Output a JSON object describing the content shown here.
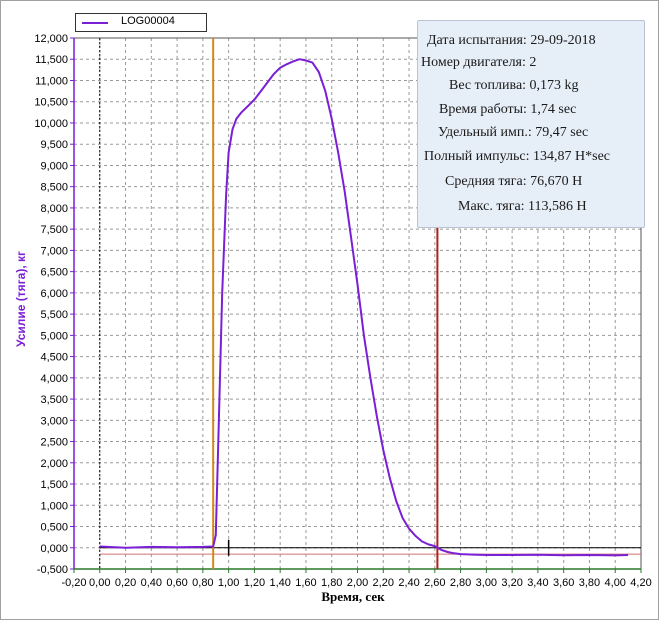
{
  "legend": {
    "series_name": "LOG00004",
    "line_color": "#7a1fd6"
  },
  "info_panel": {
    "rows": [
      "Дата испытания: 29-09-2018",
      "Номер двигателя: 2",
      "Вес топлива: 0,173 kg",
      "Время работы: 1,74 sec",
      "Удельный имп.: 79,47 sec",
      "Полный импульс: 134,87 Н*sec",
      "Средняя тяга: 76,670 Н",
      "Макс. тяга: 113,586 Н"
    ]
  },
  "chart_data": {
    "type": "line",
    "ylabel": "Усилие (тяга), кг",
    "xlabel": "Время, сек",
    "xlim": [
      -0.2,
      4.2
    ],
    "ylim": [
      -500,
      12000
    ],
    "grid": true,
    "legend_position": "top-left",
    "x_ticks": [
      "-0,20",
      "0,00",
      "0,20",
      "0,40",
      "0,60",
      "0,80",
      "1,00",
      "1,20",
      "1,40",
      "1,60",
      "1,80",
      "2,00",
      "2,20",
      "2,40",
      "2,60",
      "2,80",
      "3,00",
      "3,20",
      "3,40",
      "3,60",
      "3,80",
      "4,00",
      "4,20"
    ],
    "y_ticks": [
      "-0,500",
      "0,000",
      "0,500",
      "1,000",
      "1,500",
      "2,000",
      "2,500",
      "3,000",
      "3,500",
      "4,000",
      "4,500",
      "5,000",
      "5,500",
      "6,000",
      "6,500",
      "7,000",
      "7,500",
      "8,000",
      "8,500",
      "9,000",
      "9,500",
      "10,000",
      "10,500",
      "11,000",
      "11,500",
      "12,000"
    ],
    "markers": [
      {
        "name": "start-marker",
        "x": 0.88,
        "color": "#d08a1a"
      },
      {
        "name": "end-marker",
        "x": 2.62,
        "color": "#b02020"
      },
      {
        "name": "zero-reference",
        "x": 0.0,
        "color": "#000000"
      }
    ],
    "baseline_y": -150,
    "series": [
      {
        "name": "LOG00004",
        "color": "#7a1fd6",
        "x": [
          0.0,
          0.2,
          0.4,
          0.6,
          0.8,
          0.88,
          0.9,
          0.92,
          0.95,
          0.98,
          1.0,
          1.03,
          1.06,
          1.1,
          1.15,
          1.2,
          1.25,
          1.3,
          1.35,
          1.4,
          1.45,
          1.5,
          1.55,
          1.6,
          1.65,
          1.7,
          1.75,
          1.8,
          1.85,
          1.9,
          1.95,
          2.0,
          2.05,
          2.1,
          2.15,
          2.2,
          2.25,
          2.3,
          2.35,
          2.4,
          2.45,
          2.5,
          2.55,
          2.6,
          2.65,
          2.7,
          2.75,
          2.8,
          2.9,
          3.0,
          3.2,
          3.4,
          3.6,
          3.8,
          4.0,
          4.1
        ],
        "y": [
          30,
          0,
          20,
          10,
          20,
          30,
          300,
          2500,
          6000,
          8300,
          9300,
          9850,
          10100,
          10250,
          10400,
          10550,
          10750,
          10950,
          11150,
          11300,
          11380,
          11450,
          11500,
          11470,
          11420,
          11200,
          10750,
          10100,
          9300,
          8400,
          7300,
          6200,
          5000,
          4000,
          3100,
          2300,
          1650,
          1100,
          700,
          450,
          280,
          150,
          80,
          40,
          -50,
          -100,
          -130,
          -150,
          -160,
          -170,
          -170,
          -165,
          -175,
          -170,
          -180,
          -170
        ]
      }
    ]
  }
}
